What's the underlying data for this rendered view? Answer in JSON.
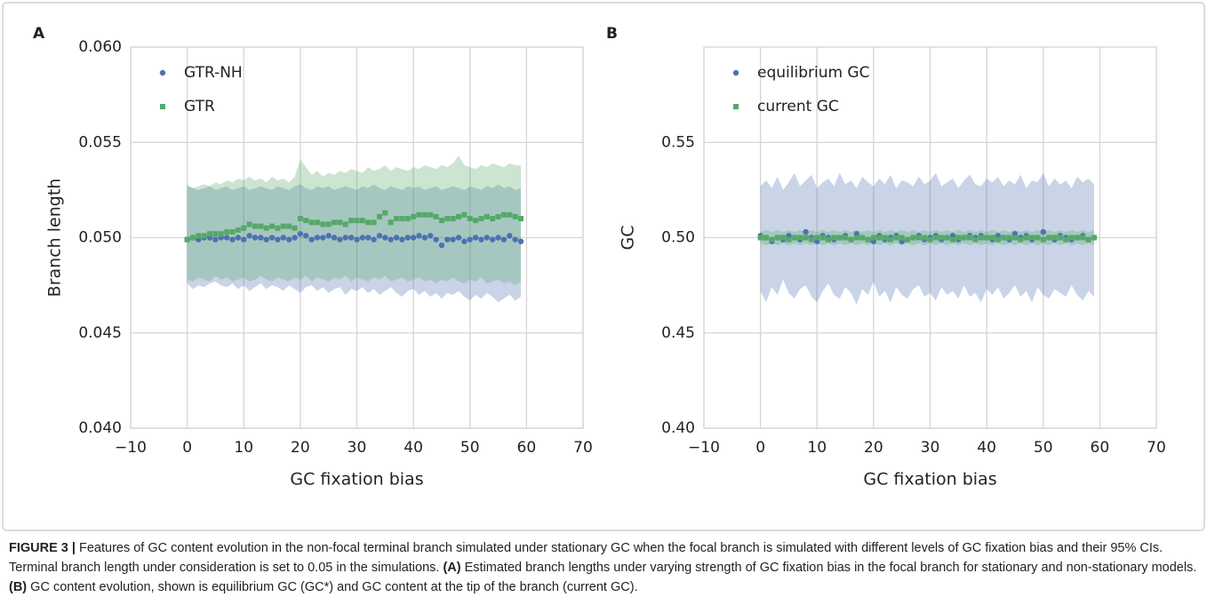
{
  "chart_data": [
    {
      "type": "scatter",
      "panel": "A",
      "xlabel": "GC fixation bias",
      "ylabel": "Branch length",
      "xlim": [
        -10,
        70
      ],
      "xticks": [
        {
          "value": -10,
          "label": "−10"
        },
        0,
        10,
        20,
        30,
        40,
        50,
        60,
        70
      ],
      "ylim": [
        0.04,
        0.06
      ],
      "yticks": [
        {
          "value": 0.04,
          "label": "0.040"
        },
        {
          "value": 0.045,
          "label": "0.045"
        },
        {
          "value": 0.05,
          "label": "0.050"
        },
        {
          "value": 0.055,
          "label": "0.055"
        },
        {
          "value": 0.06,
          "label": "0.060"
        }
      ],
      "grid": true,
      "legend": "upper left",
      "x": [
        0,
        1,
        2,
        3,
        4,
        5,
        6,
        7,
        8,
        9,
        10,
        11,
        12,
        13,
        14,
        15,
        16,
        17,
        18,
        19,
        20,
        21,
        22,
        23,
        24,
        25,
        26,
        27,
        28,
        29,
        30,
        31,
        32,
        33,
        34,
        35,
        36,
        37,
        38,
        39,
        40,
        41,
        42,
        43,
        44,
        45,
        46,
        47,
        48,
        49,
        50,
        51,
        52,
        53,
        54,
        55,
        56,
        57,
        58,
        59
      ],
      "series": [
        {
          "name": "GTR-NH",
          "color": "#4c72b0",
          "marker": "circle",
          "values": [
            0.0499,
            0.05,
            0.0499,
            0.05,
            0.05,
            0.0499,
            0.05,
            0.05,
            0.0499,
            0.05,
            0.0499,
            0.0501,
            0.05,
            0.05,
            0.0499,
            0.05,
            0.0499,
            0.05,
            0.0499,
            0.05,
            0.0502,
            0.0501,
            0.0499,
            0.05,
            0.05,
            0.0501,
            0.05,
            0.0499,
            0.05,
            0.05,
            0.0499,
            0.05,
            0.05,
            0.0499,
            0.0501,
            0.05,
            0.0499,
            0.05,
            0.0499,
            0.05,
            0.05,
            0.0501,
            0.05,
            0.0501,
            0.0499,
            0.0496,
            0.0499,
            0.0499,
            0.05,
            0.0498,
            0.0499,
            0.05,
            0.0499,
            0.05,
            0.0499,
            0.05,
            0.0499,
            0.0501,
            0.0499,
            0.0498
          ],
          "lower": [
            0.0476,
            0.0473,
            0.0475,
            0.0474,
            0.0476,
            0.0477,
            0.0475,
            0.0474,
            0.0476,
            0.0473,
            0.0475,
            0.0472,
            0.0474,
            0.0476,
            0.0473,
            0.0475,
            0.0474,
            0.0472,
            0.0475,
            0.0473,
            0.0471,
            0.0474,
            0.0475,
            0.0472,
            0.0474,
            0.0471,
            0.0473,
            0.0474,
            0.047,
            0.0473,
            0.0472,
            0.0474,
            0.0471,
            0.0473,
            0.047,
            0.0472,
            0.0474,
            0.0471,
            0.0469,
            0.0472,
            0.0473,
            0.047,
            0.0472,
            0.0469,
            0.0471,
            0.0468,
            0.0471,
            0.047,
            0.0472,
            0.0469,
            0.0467,
            0.047,
            0.0468,
            0.0471,
            0.0469,
            0.0466,
            0.0468,
            0.047,
            0.0467,
            0.0469
          ],
          "upper": [
            0.0527,
            0.0526,
            0.0525,
            0.0526,
            0.0527,
            0.0525,
            0.0526,
            0.0527,
            0.0525,
            0.0526,
            0.0527,
            0.0525,
            0.0526,
            0.0527,
            0.0526,
            0.0525,
            0.0527,
            0.0526,
            0.0525,
            0.0527,
            0.0528,
            0.0526,
            0.0525,
            0.0527,
            0.0526,
            0.0527,
            0.0525,
            0.0526,
            0.0527,
            0.0526,
            0.0525,
            0.0527,
            0.0526,
            0.0528,
            0.0526,
            0.0525,
            0.0527,
            0.0526,
            0.0525,
            0.0527,
            0.0526,
            0.0527,
            0.0525,
            0.0526,
            0.0527,
            0.0525,
            0.0526,
            0.0527,
            0.0526,
            0.0525,
            0.0527,
            0.0526,
            0.0525,
            0.0527,
            0.0526,
            0.0528,
            0.0526,
            0.0527,
            0.0525,
            0.0526
          ]
        },
        {
          "name": "GTR",
          "color": "#55a868",
          "marker": "square",
          "values": [
            0.0499,
            0.05,
            0.0501,
            0.0501,
            0.0502,
            0.0502,
            0.0502,
            0.0503,
            0.0503,
            0.0504,
            0.0505,
            0.0507,
            0.0506,
            0.0506,
            0.0505,
            0.0506,
            0.0505,
            0.0506,
            0.0506,
            0.0505,
            0.051,
            0.0509,
            0.0508,
            0.0508,
            0.0507,
            0.0507,
            0.0508,
            0.0508,
            0.0507,
            0.0509,
            0.0509,
            0.0509,
            0.0508,
            0.0508,
            0.0511,
            0.0513,
            0.0508,
            0.051,
            0.051,
            0.051,
            0.0511,
            0.0512,
            0.0512,
            0.0512,
            0.0511,
            0.0509,
            0.051,
            0.051,
            0.0511,
            0.0512,
            0.051,
            0.0509,
            0.051,
            0.0511,
            0.051,
            0.0511,
            0.0512,
            0.0512,
            0.0511,
            0.051
          ],
          "lower": [
            0.0478,
            0.0477,
            0.0479,
            0.0478,
            0.0477,
            0.048,
            0.0478,
            0.0479,
            0.0477,
            0.0478,
            0.0479,
            0.0477,
            0.0478,
            0.048,
            0.0478,
            0.0477,
            0.0479,
            0.0478,
            0.0477,
            0.0479,
            0.0478,
            0.048,
            0.0477,
            0.0479,
            0.0478,
            0.0477,
            0.0479,
            0.0478,
            0.048,
            0.0477,
            0.0479,
            0.0478,
            0.0477,
            0.0479,
            0.0478,
            0.048,
            0.0477,
            0.0478,
            0.0479,
            0.0477,
            0.0478,
            0.0479,
            0.0477,
            0.0478,
            0.0476,
            0.0478,
            0.0477,
            0.0479,
            0.0477,
            0.0476,
            0.0478,
            0.0477,
            0.0479,
            0.0476,
            0.0477,
            0.0478,
            0.0476,
            0.0477,
            0.0475,
            0.0477
          ],
          "upper": [
            0.0528,
            0.0526,
            0.0527,
            0.0528,
            0.0527,
            0.0529,
            0.0528,
            0.053,
            0.0529,
            0.0531,
            0.053,
            0.0532,
            0.053,
            0.0531,
            0.0529,
            0.0532,
            0.053,
            0.0531,
            0.0529,
            0.0532,
            0.0541,
            0.0537,
            0.0533,
            0.0535,
            0.0532,
            0.0534,
            0.0533,
            0.0535,
            0.0534,
            0.0536,
            0.0535,
            0.0534,
            0.0537,
            0.0535,
            0.0536,
            0.0538,
            0.0535,
            0.0537,
            0.0536,
            0.0535,
            0.0537,
            0.0536,
            0.0538,
            0.0537,
            0.0536,
            0.0538,
            0.0537,
            0.0539,
            0.0543,
            0.0538,
            0.0537,
            0.0536,
            0.0538,
            0.0537,
            0.0539,
            0.0538,
            0.0537,
            0.0539,
            0.0538,
            0.0538
          ]
        }
      ]
    },
    {
      "type": "scatter",
      "panel": "B",
      "xlabel": "GC fixation bias",
      "ylabel": "GC",
      "xlim": [
        -10,
        70
      ],
      "xticks": [
        {
          "value": -10,
          "label": "−10"
        },
        0,
        10,
        20,
        30,
        40,
        50,
        60,
        70
      ],
      "ylim": [
        0.4,
        0.6
      ],
      "yticks": [
        {
          "value": 0.4,
          "label": "0.40"
        },
        0.45,
        {
          "value": 0.5,
          "label": "0.50"
        },
        0.55
      ],
      "grid": true,
      "legend": "upper left",
      "x": [
        0,
        1,
        2,
        3,
        4,
        5,
        6,
        7,
        8,
        9,
        10,
        11,
        12,
        13,
        14,
        15,
        16,
        17,
        18,
        19,
        20,
        21,
        22,
        23,
        24,
        25,
        26,
        27,
        28,
        29,
        30,
        31,
        32,
        33,
        34,
        35,
        36,
        37,
        38,
        39,
        40,
        41,
        42,
        43,
        44,
        45,
        46,
        47,
        48,
        49,
        50,
        51,
        52,
        53,
        54,
        55,
        56,
        57,
        58,
        59
      ],
      "series": [
        {
          "name": "equilibrium GC",
          "color": "#4c72b0",
          "marker": "circle",
          "values": [
            0.501,
            0.5,
            0.498,
            0.5,
            0.499,
            0.501,
            0.5,
            0.499,
            0.503,
            0.5,
            0.498,
            0.501,
            0.5,
            0.499,
            0.5,
            0.501,
            0.499,
            0.502,
            0.5,
            0.499,
            0.498,
            0.501,
            0.499,
            0.5,
            0.501,
            0.498,
            0.499,
            0.5,
            0.501,
            0.499,
            0.5,
            0.501,
            0.499,
            0.5,
            0.501,
            0.499,
            0.5,
            0.501,
            0.5,
            0.501,
            0.5,
            0.499,
            0.501,
            0.5,
            0.499,
            0.502,
            0.5,
            0.501,
            0.499,
            0.5,
            0.503,
            0.5,
            0.499,
            0.501,
            0.5,
            0.499,
            0.5,
            0.501,
            0.499,
            0.5
          ],
          "lower": [
            0.472,
            0.466,
            0.474,
            0.47,
            0.478,
            0.471,
            0.468,
            0.473,
            0.475,
            0.469,
            0.466,
            0.472,
            0.476,
            0.47,
            0.468,
            0.474,
            0.471,
            0.465,
            0.473,
            0.47,
            0.477,
            0.469,
            0.472,
            0.466,
            0.474,
            0.47,
            0.468,
            0.473,
            0.475,
            0.469,
            0.471,
            0.467,
            0.474,
            0.47,
            0.472,
            0.468,
            0.475,
            0.469,
            0.471,
            0.466,
            0.473,
            0.47,
            0.474,
            0.468,
            0.471,
            0.475,
            0.469,
            0.472,
            0.466,
            0.474,
            0.47,
            0.468,
            0.473,
            0.471,
            0.469,
            0.475,
            0.47,
            0.467,
            0.472,
            0.469
          ],
          "upper": [
            0.527,
            0.53,
            0.526,
            0.532,
            0.525,
            0.529,
            0.534,
            0.527,
            0.53,
            0.533,
            0.526,
            0.529,
            0.531,
            0.527,
            0.534,
            0.528,
            0.53,
            0.526,
            0.532,
            0.529,
            0.527,
            0.531,
            0.528,
            0.533,
            0.526,
            0.53,
            0.529,
            0.527,
            0.532,
            0.528,
            0.53,
            0.534,
            0.527,
            0.529,
            0.531,
            0.526,
            0.53,
            0.533,
            0.528,
            0.527,
            0.531,
            0.529,
            0.532,
            0.527,
            0.53,
            0.528,
            0.533,
            0.526,
            0.53,
            0.529,
            0.534,
            0.527,
            0.531,
            0.528,
            0.53,
            0.526,
            0.532,
            0.529,
            0.531,
            0.528
          ]
        },
        {
          "name": "current GC",
          "color": "#55a868",
          "marker": "square",
          "values": [
            0.5,
            0.5,
            0.499,
            0.5,
            0.5,
            0.499,
            0.5,
            0.5,
            0.5,
            0.499,
            0.5,
            0.5,
            0.499,
            0.5,
            0.5,
            0.5,
            0.499,
            0.5,
            0.5,
            0.499,
            0.5,
            0.5,
            0.5,
            0.499,
            0.5,
            0.5,
            0.499,
            0.5,
            0.5,
            0.5,
            0.499,
            0.5,
            0.5,
            0.5,
            0.499,
            0.5,
            0.5,
            0.5,
            0.499,
            0.5,
            0.5,
            0.5,
            0.499,
            0.5,
            0.5,
            0.5,
            0.499,
            0.5,
            0.5,
            0.5,
            0.499,
            0.5,
            0.5,
            0.5,
            0.499,
            0.5,
            0.5,
            0.5,
            0.499,
            0.5
          ],
          "lower": [
            0.497,
            0.496,
            0.497,
            0.496,
            0.497,
            0.496,
            0.497,
            0.496,
            0.497,
            0.496,
            0.497,
            0.496,
            0.497,
            0.496,
            0.497,
            0.496,
            0.497,
            0.496,
            0.497,
            0.496,
            0.497,
            0.496,
            0.497,
            0.496,
            0.497,
            0.496,
            0.497,
            0.496,
            0.497,
            0.496,
            0.497,
            0.496,
            0.497,
            0.496,
            0.497,
            0.496,
            0.497,
            0.496,
            0.497,
            0.496,
            0.497,
            0.496,
            0.497,
            0.496,
            0.497,
            0.496,
            0.497,
            0.496,
            0.497,
            0.496,
            0.497,
            0.496,
            0.497,
            0.496,
            0.497,
            0.496,
            0.497,
            0.496,
            0.497,
            0.496
          ],
          "upper": [
            0.503,
            0.504,
            0.503,
            0.504,
            0.503,
            0.504,
            0.503,
            0.504,
            0.503,
            0.504,
            0.503,
            0.504,
            0.503,
            0.504,
            0.503,
            0.504,
            0.503,
            0.504,
            0.503,
            0.504,
            0.503,
            0.504,
            0.503,
            0.504,
            0.503,
            0.504,
            0.503,
            0.504,
            0.503,
            0.504,
            0.503,
            0.504,
            0.503,
            0.504,
            0.503,
            0.504,
            0.503,
            0.504,
            0.503,
            0.504,
            0.503,
            0.504,
            0.503,
            0.504,
            0.503,
            0.504,
            0.503,
            0.504,
            0.503,
            0.504,
            0.503,
            0.504,
            0.503,
            0.504,
            0.503,
            0.504,
            0.503,
            0.504,
            0.503,
            0.504
          ]
        }
      ]
    }
  ],
  "caption": {
    "label": "FIGURE 3 |",
    "text_1": " Features of GC content evolution in the non-focal terminal branch simulated under stationary GC when the focal branch is simulated with different levels of GC fixation bias and their 95% CIs. Terminal branch length under consideration is set to 0.05 in the simulations. ",
    "panel_a": "(A)",
    "text_2": " Estimated branch lengths under varying strength of GC fixation bias in the focal branch for stationary and non-stationary models. ",
    "panel_b": "(B)",
    "text_3": " GC content evolution, shown is equilibrium GC (GC*) and GC content at the tip of the branch (current GC)."
  }
}
